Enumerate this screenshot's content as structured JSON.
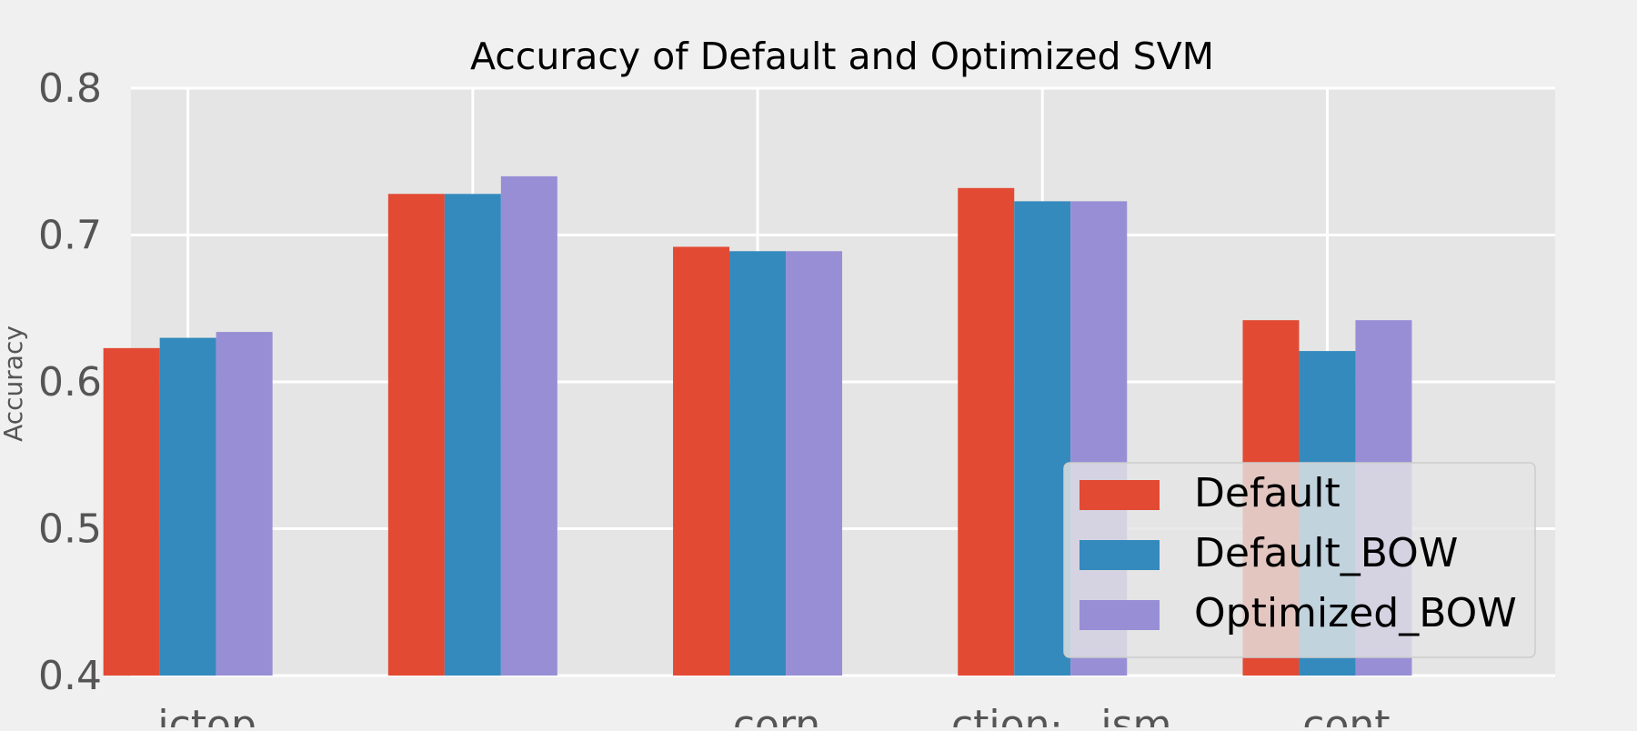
{
  "chart_data": {
    "type": "bar",
    "title": "Accuracy of Default and Optimized SVM",
    "xlabel": "",
    "ylabel": "Accuracy",
    "ylim": [
      0.4,
      0.8
    ],
    "yticks": [
      0.4,
      0.5,
      0.6,
      0.7,
      0.8
    ],
    "ytick_labels": [
      "0.4",
      "0.5",
      "0.6",
      "0.7",
      "0.8"
    ],
    "grid": true,
    "legend_position": "bottom-right",
    "categories": [
      "...ictop",
      "",
      "...corn",
      "...ction·...ism",
      "...cont"
    ],
    "series": [
      {
        "name": "Default",
        "color": "#E24A33",
        "values": [
          0.623,
          0.728,
          0.692,
          0.732,
          0.642
        ]
      },
      {
        "name": "Default_BOW",
        "color": "#348ABD",
        "values": [
          0.63,
          0.728,
          0.689,
          0.723,
          0.621
        ]
      },
      {
        "name": "Optimized_BOW",
        "color": "#988ED5",
        "values": [
          0.634,
          0.74,
          0.689,
          0.723,
          0.642
        ]
      }
    ]
  }
}
